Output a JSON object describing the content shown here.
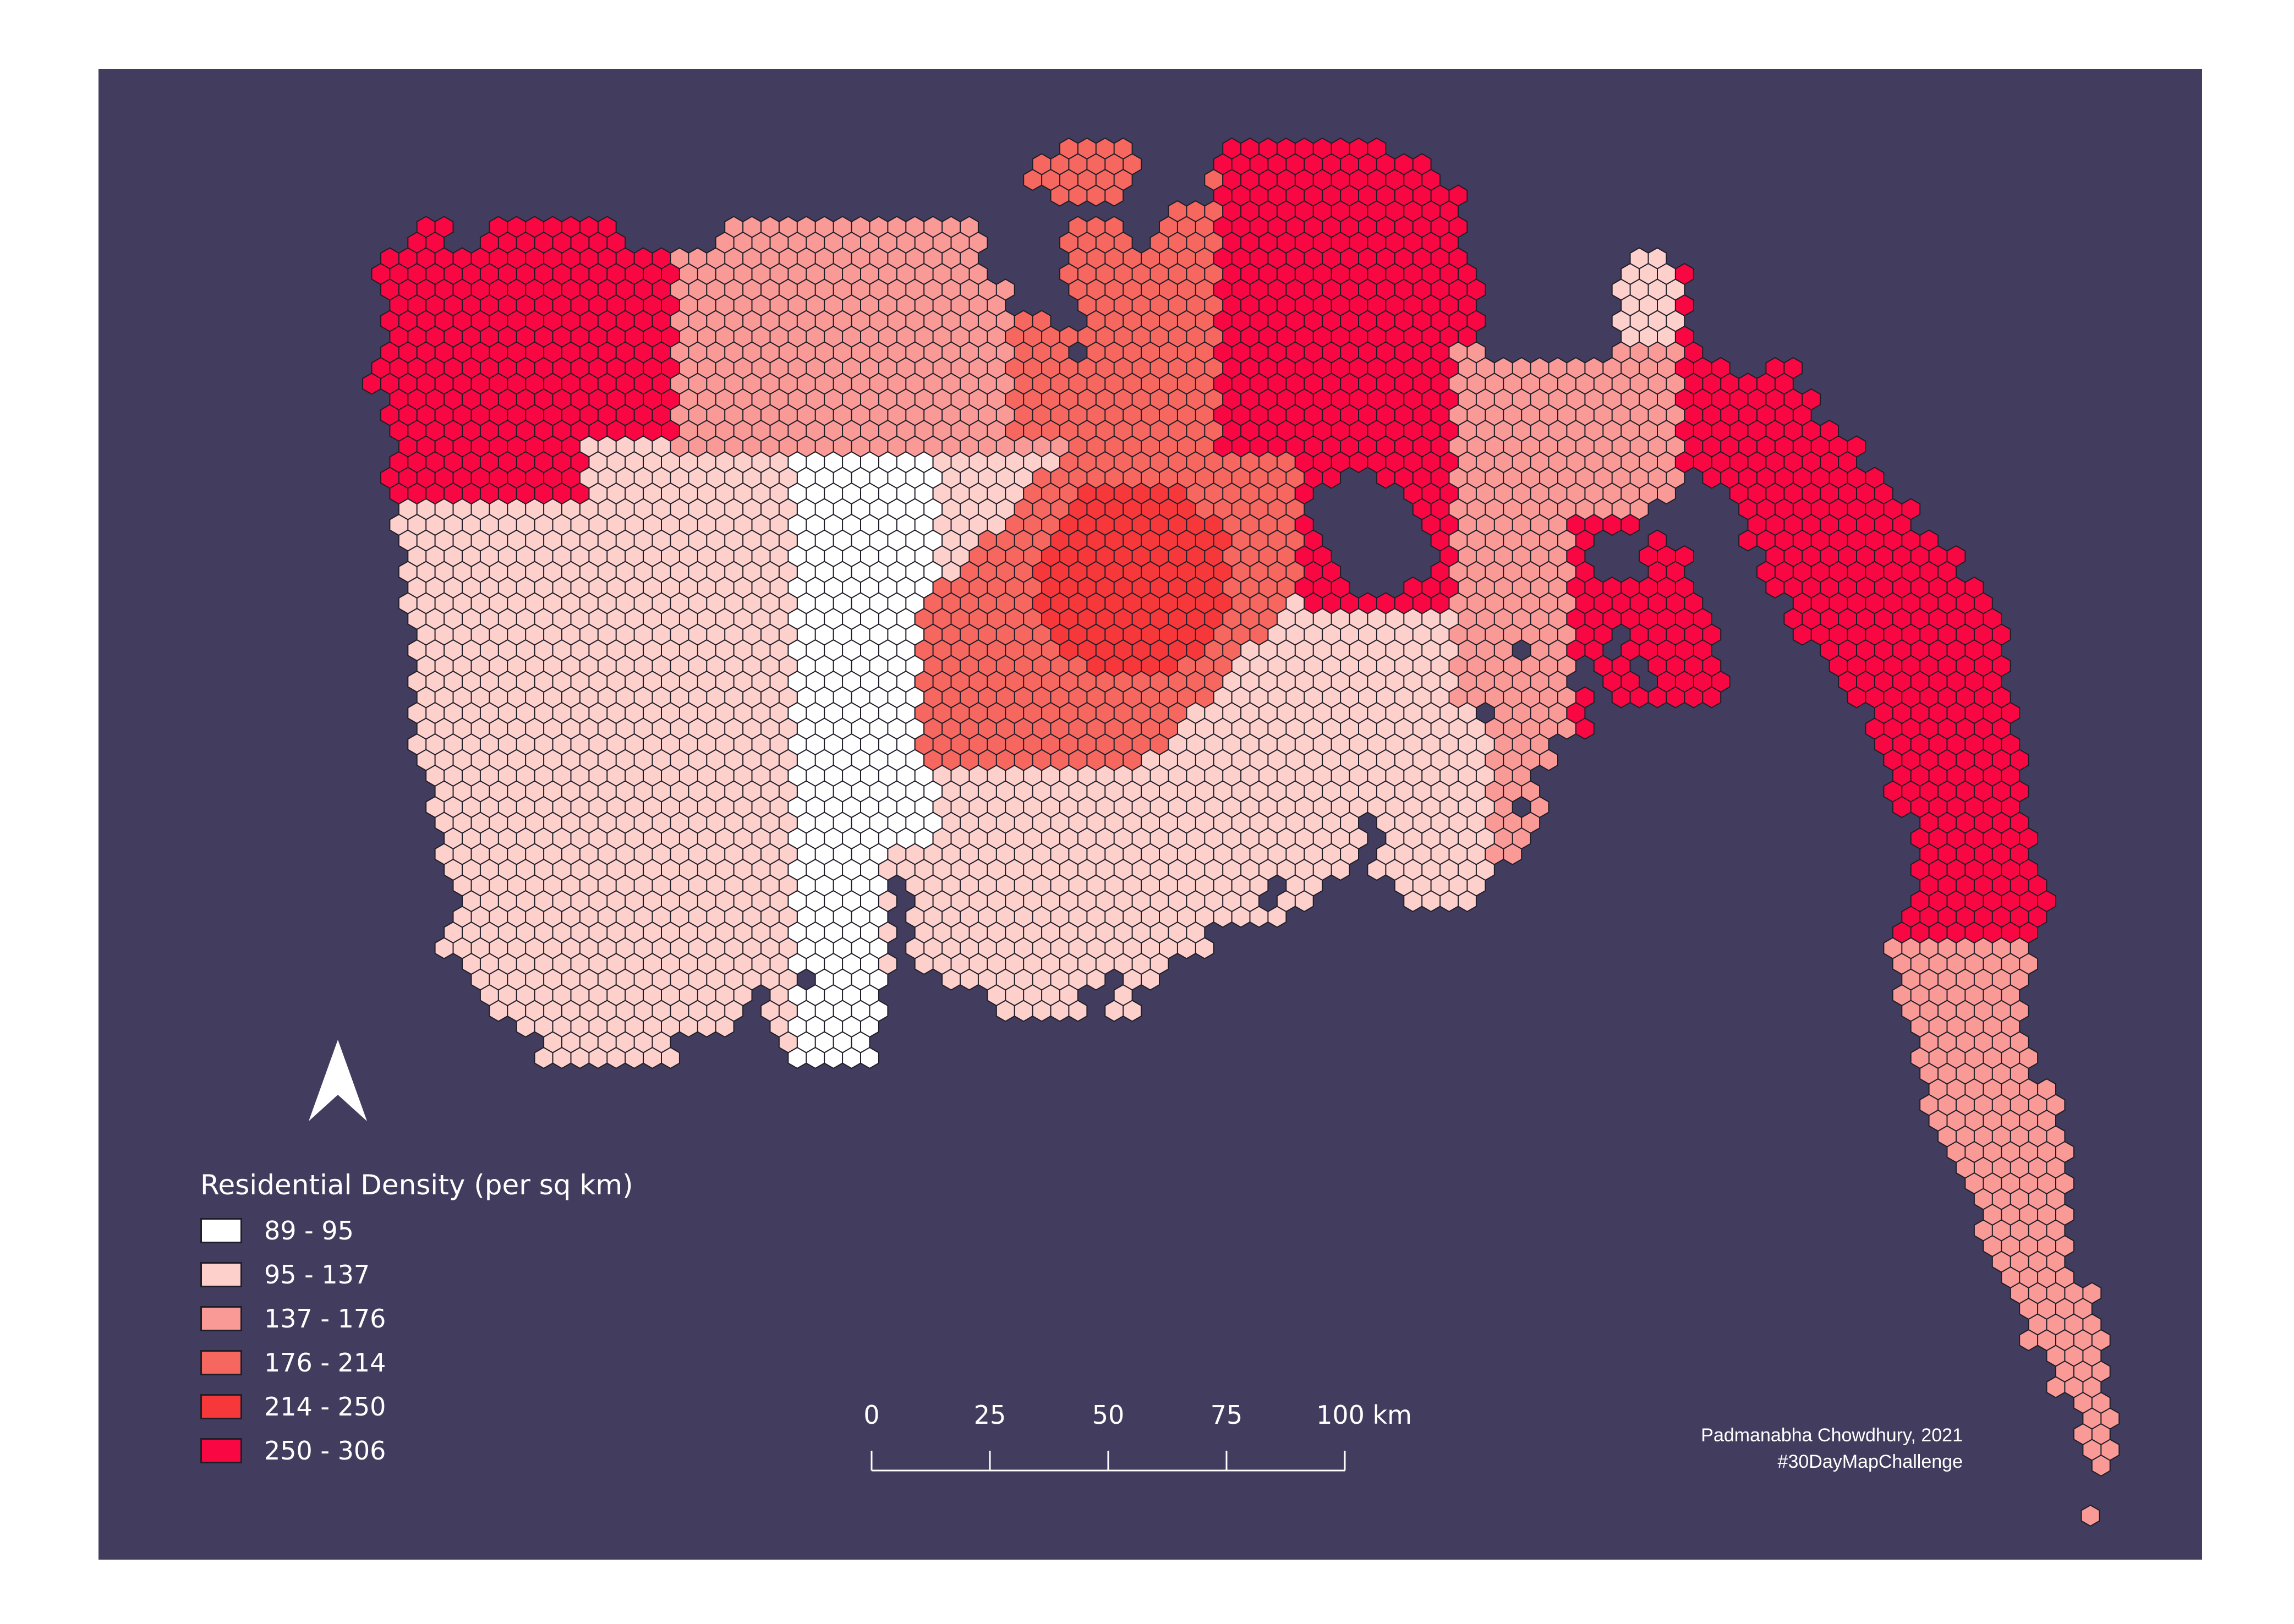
{
  "map": {
    "background_color": "#423d5e",
    "outline_color": "#1e1e2a",
    "legend": {
      "title": "Residential Density (per sq km)",
      "classes": [
        {
          "label": "89 - 95",
          "color": "#ffffff"
        },
        {
          "label": "95 - 137",
          "color": "#fdd0cc"
        },
        {
          "label": "137 - 176",
          "color": "#f99a96"
        },
        {
          "label": "176 - 214",
          "color": "#f5675f"
        },
        {
          "label": "214 - 250",
          "color": "#f7383a"
        },
        {
          "label": "250 - 306",
          "color": "#f80742"
        }
      ]
    },
    "scale_bar": {
      "ticks": [
        "0",
        "25",
        "50",
        "75",
        "100 km"
      ]
    },
    "north_arrow_icon": "north-arrow-icon",
    "credit": {
      "author": "Padmanabha Chowdhury, 2021",
      "hashtag": "#30DayMapChallenge"
    }
  }
}
